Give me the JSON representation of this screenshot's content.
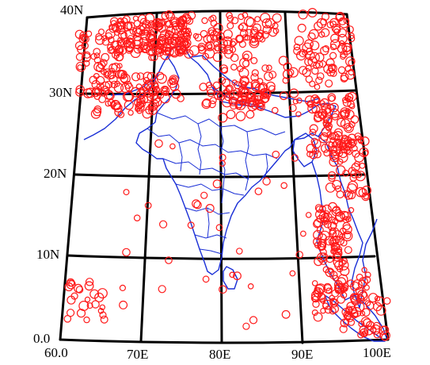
{
  "lat_labels": [
    "40N",
    "30N",
    "20N",
    "10N",
    "0.0"
  ],
  "lon_labels": [
    "60.0",
    "70E",
    "80E",
    "90E",
    "100E"
  ],
  "colors": {
    "graticule": "#000000",
    "boundaries": "#1a2fd6",
    "events": "#ff1a1a"
  }
}
